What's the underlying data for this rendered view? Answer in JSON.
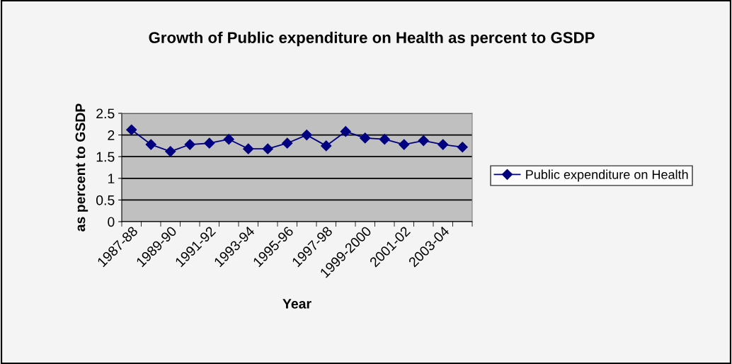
{
  "chart_data": {
    "type": "line",
    "title": "Growth of Public expenditure on Health as percent to GSDP",
    "xlabel": "Year",
    "ylabel": "as percent to GSDP",
    "categories": [
      "1987-88",
      null,
      "1989-90",
      null,
      "1991-92",
      null,
      "1993-94",
      null,
      "1995-96",
      null,
      "1997-98",
      null,
      "1999-2000",
      null,
      "2001-02",
      null,
      "2003-04",
      null
    ],
    "series": [
      {
        "name": "Public expenditure on Health",
        "color": "#000080",
        "values": [
          2.12,
          1.78,
          1.62,
          1.78,
          1.81,
          1.9,
          1.68,
          1.68,
          1.81,
          2.0,
          1.75,
          2.08,
          1.93,
          1.9,
          1.78,
          1.87,
          1.78,
          1.72
        ]
      }
    ],
    "ylim": [
      0,
      2.5
    ],
    "yticks": [
      0,
      0.5,
      1,
      1.5,
      2,
      2.5
    ],
    "grid": "y",
    "legend": "right",
    "marker": "diamond",
    "line_style": "solid"
  }
}
